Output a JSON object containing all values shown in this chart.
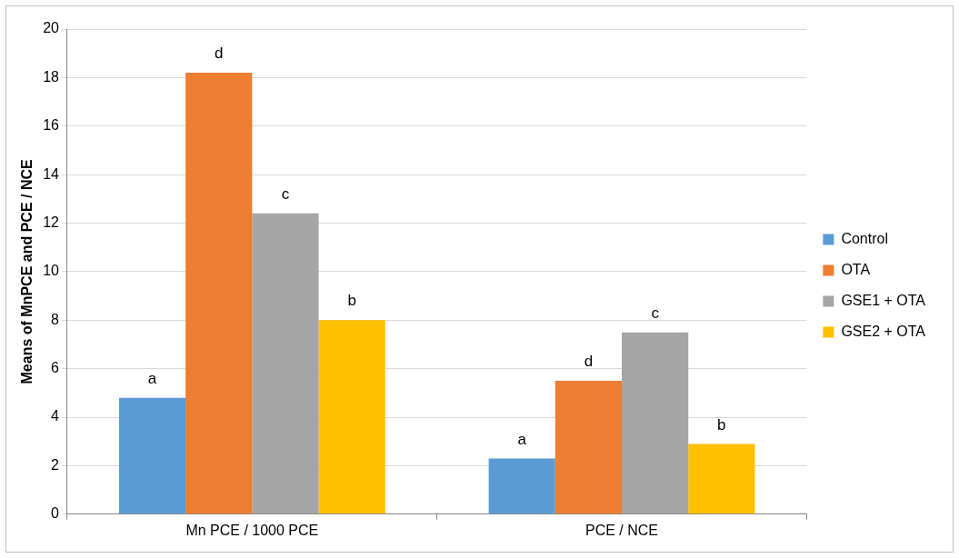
{
  "chart_data": {
    "type": "bar",
    "ylabel": "Means of MnPCE and PCE / NCE",
    "categories": [
      "Mn PCE / 1000 PCE",
      "PCE / NCE"
    ],
    "series": [
      {
        "name": "Control",
        "color": "#5b9bd5",
        "values": [
          4.8,
          2.3
        ],
        "value_labels": [
          "a",
          "a"
        ]
      },
      {
        "name": "OTA",
        "color": "#ed7d31",
        "values": [
          18.2,
          5.5
        ],
        "value_labels": [
          "d",
          "d"
        ]
      },
      {
        "name": "GSE1 + OTA",
        "color": "#a5a5a5",
        "values": [
          12.4,
          7.5
        ],
        "value_labels": [
          "c",
          "c"
        ]
      },
      {
        "name": "GSE2 + OTA",
        "color": "#ffc000",
        "values": [
          8.0,
          2.9
        ],
        "value_labels": [
          "b",
          "b"
        ]
      }
    ],
    "ylim": [
      0,
      20
    ],
    "yticks": [
      0,
      2,
      4,
      6,
      8,
      10,
      12,
      14,
      16,
      18,
      20
    ],
    "grid": "y",
    "legend": "right"
  }
}
